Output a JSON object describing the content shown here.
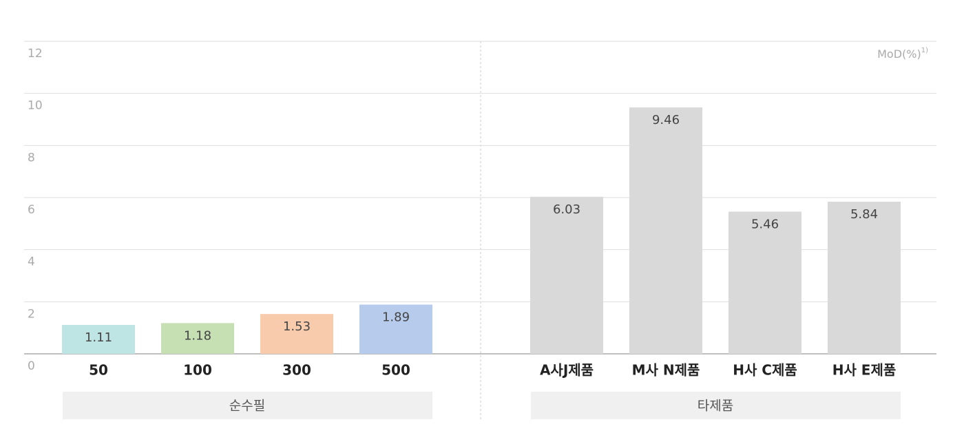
{
  "chart_data": {
    "type": "bar",
    "y_label": "MoD(%)",
    "y_label_note": "1)",
    "ylim": [
      0,
      12
    ],
    "yticks": [
      0,
      2,
      4,
      6,
      8,
      10,
      12
    ],
    "grid": true,
    "groups": [
      {
        "name": "순수필",
        "categories": [
          "50",
          "100",
          "300",
          "500"
        ],
        "values": [
          1.11,
          1.18,
          1.53,
          1.89
        ],
        "colors": [
          "#bfe4e4",
          "#c6e0b4",
          "#f8cbad",
          "#b7cbec"
        ]
      },
      {
        "name": "타제품",
        "categories": [
          "A사J제품",
          "M사 N제품",
          "H사 C제품",
          "H사 E제품"
        ],
        "values": [
          6.03,
          9.46,
          5.46,
          5.84
        ],
        "colors": [
          "#d9d9d9",
          "#d9d9d9",
          "#d9d9d9",
          "#d9d9d9"
        ]
      }
    ]
  }
}
